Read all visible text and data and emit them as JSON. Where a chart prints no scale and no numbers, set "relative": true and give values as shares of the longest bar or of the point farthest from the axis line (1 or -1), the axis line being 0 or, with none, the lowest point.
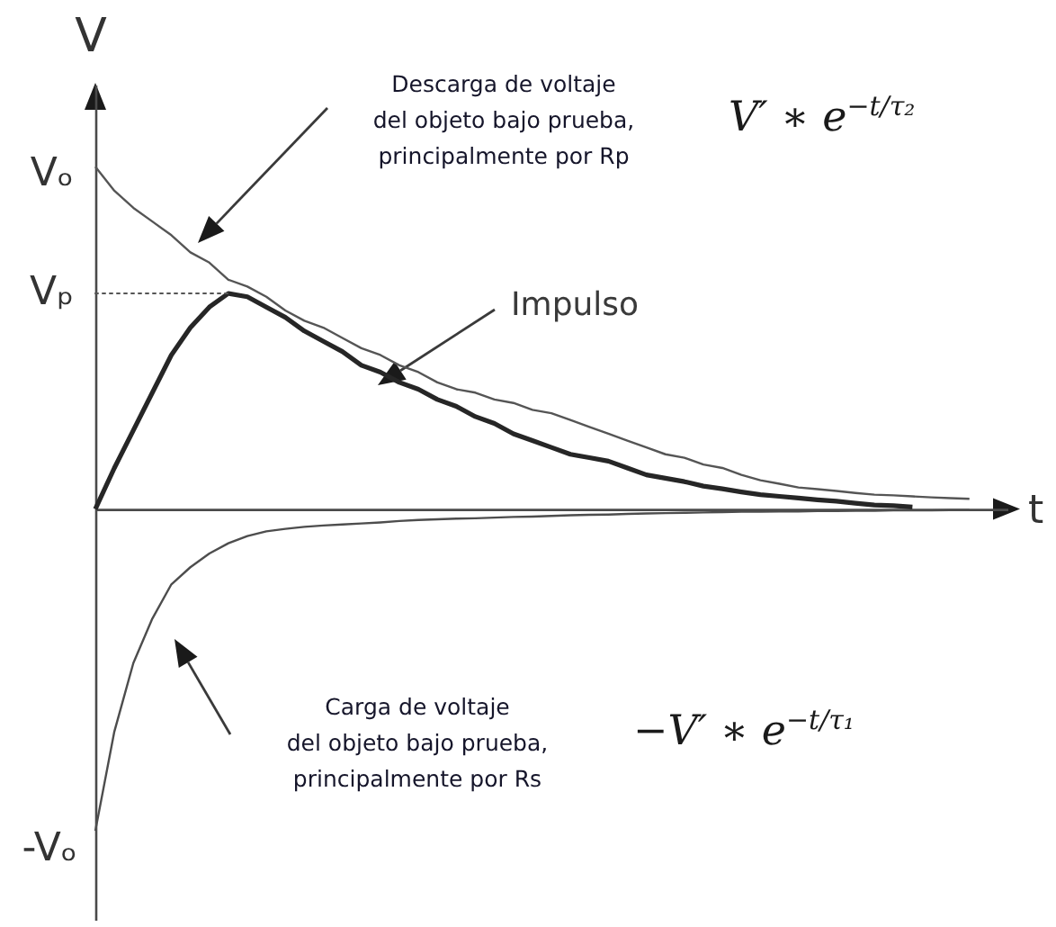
{
  "chart_data": {
    "type": "line",
    "xlabel": "t",
    "ylabel": "V",
    "relative": true,
    "categories": [
      null,
      null,
      null,
      null,
      null,
      null,
      null,
      null,
      null,
      null,
      null,
      null,
      null,
      null,
      null,
      null,
      null,
      null,
      null,
      null,
      null,
      null,
      null,
      null,
      null,
      null,
      null,
      null,
      null,
      null,
      null,
      null,
      null,
      null,
      null,
      null,
      null,
      null,
      null,
      null,
      null,
      null,
      null,
      null,
      null,
      null,
      null,
      null,
      null
    ],
    "series": [
      {
        "color": "#555555",
        "values": [
          1.0,
          0.93,
          0.88,
          0.84,
          0.8,
          0.75,
          0.72,
          0.67,
          0.65,
          0.62,
          0.58,
          0.55,
          0.53,
          0.5,
          0.47,
          0.45,
          0.42,
          0.4,
          0.37,
          0.35,
          0.34,
          0.32,
          0.31,
          0.29,
          0.28,
          0.26,
          0.24,
          0.22,
          0.2,
          0.18,
          0.16,
          0.15,
          0.13,
          0.12,
          0.1,
          0.084,
          0.074,
          0.063,
          0.058,
          0.053,
          0.047,
          0.042,
          0.04,
          0.037,
          0.034,
          0.032,
          0.03,
          null,
          null
        ]
      },
      {
        "color": "#262626",
        "values": [
          0,
          0.12,
          0.23,
          0.34,
          0.45,
          0.53,
          0.59,
          0.63,
          0.62,
          0.59,
          0.56,
          0.52,
          0.49,
          0.46,
          0.42,
          0.4,
          0.37,
          0.35,
          0.32,
          0.3,
          0.27,
          0.25,
          0.22,
          0.2,
          0.18,
          0.16,
          0.15,
          0.14,
          0.12,
          0.1,
          0.09,
          0.08,
          0.067,
          0.059,
          0.05,
          0.042,
          0.037,
          0.032,
          0.027,
          0.023,
          0.017,
          0.012,
          0.01,
          0.006,
          null,
          null,
          null,
          null,
          null
        ]
      },
      {
        "color": "#4d4d4d",
        "values": [
          -0.94,
          -0.65,
          -0.45,
          -0.32,
          -0.22,
          -0.17,
          -0.13,
          -0.1,
          -0.079,
          -0.065,
          -0.058,
          -0.052,
          -0.048,
          -0.045,
          -0.042,
          -0.039,
          -0.035,
          -0.032,
          -0.03,
          -0.028,
          -0.027,
          -0.025,
          -0.023,
          -0.022,
          -0.02,
          -0.018,
          -0.017,
          -0.016,
          -0.014,
          -0.013,
          -0.012,
          -0.011,
          -0.01,
          -0.009,
          -0.008,
          -0.008,
          -0.007,
          -0.007,
          -0.006,
          -0.006,
          -0.005,
          -0.005,
          -0.004,
          -0.004,
          -0.004,
          -0.003,
          -0.003,
          null,
          null
        ]
      },
      {
        "color": "#555555",
        "line_style": "dotted",
        "values": [
          0.63,
          0.63,
          0.63,
          0.63,
          0.63,
          0.63,
          0.63,
          0.63,
          null,
          null,
          null,
          null,
          null,
          null,
          null,
          null,
          null,
          null,
          null,
          null,
          null,
          null,
          null,
          null,
          null,
          null,
          null,
          null,
          null,
          null,
          null,
          null,
          null,
          null,
          null,
          null,
          null,
          null,
          null,
          null,
          null,
          null,
          null,
          null,
          null,
          null,
          null,
          null,
          null
        ]
      }
    ],
    "annotations": [
      "Descarga de voltaje\ndel objeto bajo prueba,\nprincipalmente por Rp",
      "V′ ∗ e$^{−t/τ₂}$",
      "Impulso",
      "Carga de voltaje\ndel objeto bajo prueba,\nprincipalmente por Rs",
      "−V′ ∗ e$^{−t/τ₁}$",
      "Vₒ",
      "Vₚ",
      "-Vₒ"
    ]
  }
}
